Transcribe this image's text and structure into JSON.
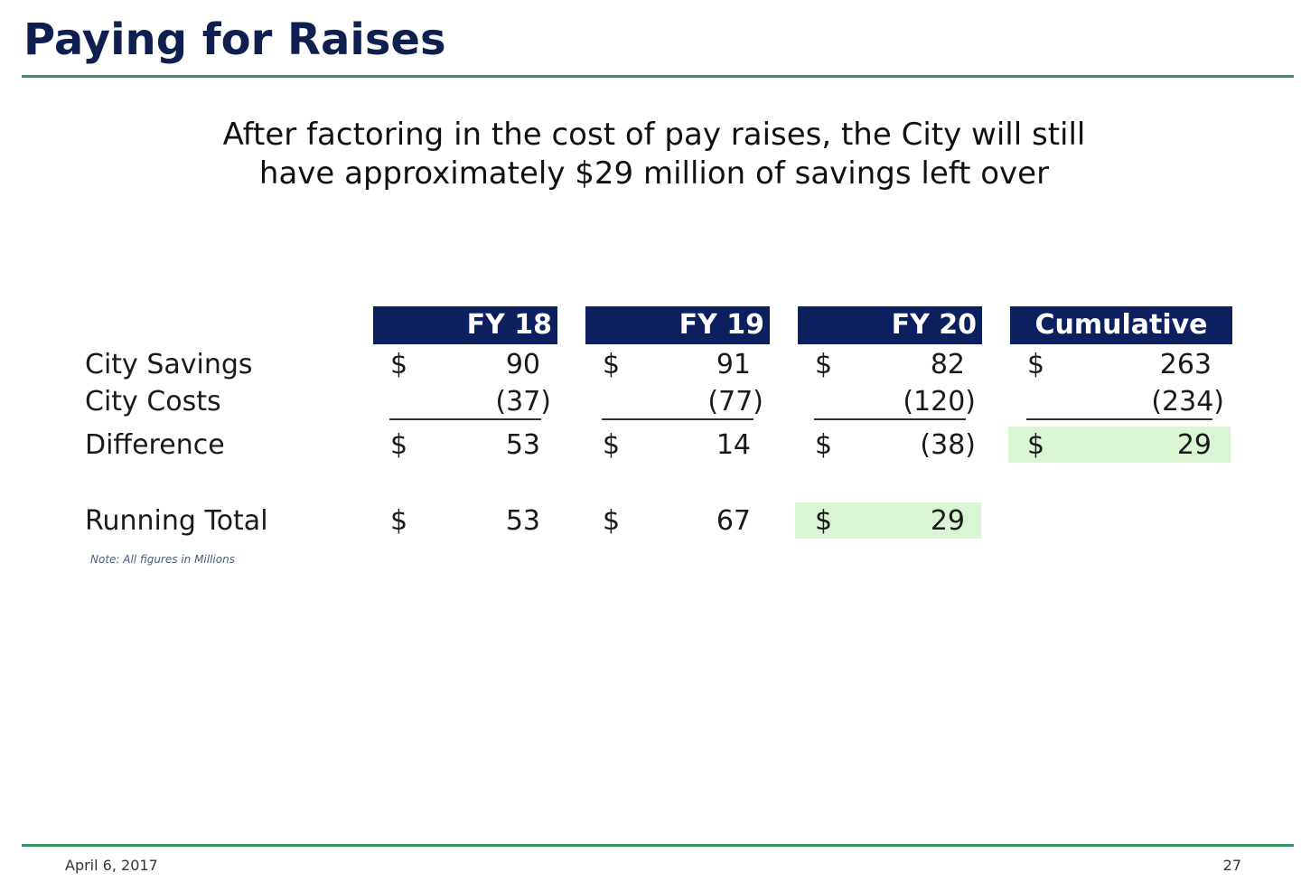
{
  "slide": {
    "title": "Paying for Raises",
    "subtitle_line1": "After factoring in the cost of pay raises, the City will still",
    "subtitle_line2": "have approximately $29 million of savings left over",
    "note": "Note: All figures in Millions",
    "footer_date": "April 6, 2017",
    "page_number": "27"
  },
  "colors": {
    "header_bg": "#0c1f5e",
    "title": "#0f1f4f",
    "rule": "#3d8f68",
    "highlight": "#d9f5d3"
  },
  "table": {
    "columns": [
      "FY 18",
      "FY 19",
      "FY 20",
      "Cumulative"
    ],
    "currency_symbol": "$",
    "rows": [
      {
        "label": "City Savings",
        "values": [
          "90",
          "91",
          "82",
          "263"
        ]
      },
      {
        "label": "City Costs",
        "values": [
          "(37)",
          "(77)",
          "(120)",
          "(234)"
        ]
      },
      {
        "label": "Difference",
        "values": [
          "53",
          "14",
          "(38)",
          "29"
        ]
      },
      {
        "label": "Running Total",
        "values": [
          "53",
          "67",
          "29"
        ]
      }
    ],
    "highlighted_cells": [
      "Difference / Cumulative",
      "Running Total / FY 20"
    ]
  }
}
